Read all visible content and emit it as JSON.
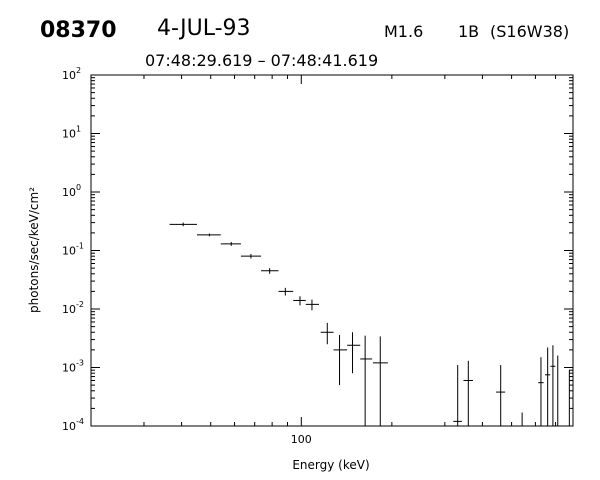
{
  "header": {
    "event_id": "08370",
    "date": "4-JUL-93",
    "flare_class": "M1.6",
    "optical_class": "1B",
    "location": "(S16W38)",
    "time_range": "07:48:29.619 – 07:48:41.619"
  },
  "chart_data": {
    "type": "scatter",
    "title": "",
    "xlabel": "Energy (keV)",
    "ylabel": "photons/sec/keV/cm²",
    "x_scale": "log",
    "y_scale": "log",
    "xlim": [
      20,
      800
    ],
    "ylim": [
      0.0001,
      100
    ],
    "x_tick_labels": [
      "100"
    ],
    "y_tick_labels": [
      {
        "base": "10",
        "exp": "2"
      },
      {
        "base": "10",
        "exp": "1"
      },
      {
        "base": "10",
        "exp": "0"
      },
      {
        "base": "10",
        "exp": "-1"
      },
      {
        "base": "10",
        "exp": "-2"
      },
      {
        "base": "10",
        "exp": "-3"
      },
      {
        "base": "10",
        "exp": "-4"
      }
    ],
    "grid": false,
    "legend": "none",
    "series": [
      {
        "points": [
          {
            "x": 40.5,
            "x_lo": 36.5,
            "x_hi": 45.0,
            "y": 0.28,
            "y_lo": 0.26,
            "y_hi": 0.3
          },
          {
            "x": 49.5,
            "x_lo": 45.0,
            "x_hi": 54.0,
            "y": 0.185,
            "y_lo": 0.175,
            "y_hi": 0.195
          },
          {
            "x": 58.5,
            "x_lo": 54.0,
            "x_hi": 63.0,
            "y": 0.13,
            "y_lo": 0.12,
            "y_hi": 0.14
          },
          {
            "x": 68.0,
            "x_lo": 63.0,
            "x_hi": 73.5,
            "y": 0.08,
            "y_lo": 0.073,
            "y_hi": 0.087
          },
          {
            "x": 78.5,
            "x_lo": 73.5,
            "x_hi": 84.0,
            "y": 0.045,
            "y_lo": 0.04,
            "y_hi": 0.05
          },
          {
            "x": 88.5,
            "x_lo": 84.0,
            "x_hi": 94.0,
            "y": 0.02,
            "y_lo": 0.017,
            "y_hi": 0.023
          },
          {
            "x": 99.0,
            "x_lo": 94.0,
            "x_hi": 103.5,
            "y": 0.014,
            "y_lo": 0.0115,
            "y_hi": 0.0165
          },
          {
            "x": 108.5,
            "x_lo": 103.5,
            "x_hi": 114.5,
            "y": 0.012,
            "y_lo": 0.0095,
            "y_hi": 0.0145
          },
          {
            "x": 122.0,
            "x_lo": 116.0,
            "x_hi": 128.0,
            "y": 0.004,
            "y_lo": 0.0025,
            "y_hi": 0.0058
          },
          {
            "x": 134.0,
            "x_lo": 128.0,
            "x_hi": 142.0,
            "y": 0.002,
            "y_lo": 0.0005,
            "y_hi": 0.0036
          },
          {
            "x": 148.0,
            "x_lo": 142.0,
            "x_hi": 157.0,
            "y": 0.0024,
            "y_lo": 0.0008,
            "y_hi": 0.004
          },
          {
            "x": 163.0,
            "x_lo": 157.0,
            "x_hi": 172.0,
            "y": 0.0014,
            "y_lo": 0.0001,
            "y_hi": 0.0035
          },
          {
            "x": 183.0,
            "x_lo": 173.0,
            "x_hi": 194.0,
            "y": 0.0012,
            "y_lo": 0.0001,
            "y_hi": 0.0034
          },
          {
            "x": 331.0,
            "x_lo": 320.0,
            "x_hi": 342.0,
            "y": 0.00012,
            "y_lo": 0.0001,
            "y_hi": 0.0011
          },
          {
            "x": 359.0,
            "x_lo": 346.0,
            "x_hi": 372.0,
            "y": 0.0006,
            "y_lo": 0.0001,
            "y_hi": 0.0013
          },
          {
            "x": 460.0,
            "x_lo": 444.0,
            "x_hi": 476.0,
            "y": 0.00038,
            "y_lo": 0.0001,
            "y_hi": 0.0011
          },
          {
            "x": 542.0,
            "x_lo": 542.0,
            "x_hi": 542.0,
            "y": 0.00017,
            "y_lo": 0.0001,
            "y_hi": 0.00017
          },
          {
            "x": 626.0,
            "x_lo": 613.0,
            "x_hi": 639.0,
            "y": 0.00055,
            "y_lo": 0.0001,
            "y_hi": 0.0015
          },
          {
            "x": 659.0,
            "x_lo": 646.0,
            "x_hi": 672.0,
            "y": 0.00075,
            "y_lo": 0.0001,
            "y_hi": 0.0022
          },
          {
            "x": 686.0,
            "x_lo": 673.0,
            "x_hi": 699.0,
            "y": 0.00105,
            "y_lo": 0.0001,
            "y_hi": 0.0024
          },
          {
            "x": 712.0,
            "x_lo": 712.0,
            "x_hi": 712.0,
            "y": 0.0005,
            "y_lo": 0.0001,
            "y_hi": 0.0016
          },
          {
            "x": 778.0,
            "x_lo": 778.0,
            "x_hi": 778.0,
            "y": 0.0009,
            "y_lo": 0.0001,
            "y_hi": 0.0009
          }
        ]
      }
    ]
  }
}
